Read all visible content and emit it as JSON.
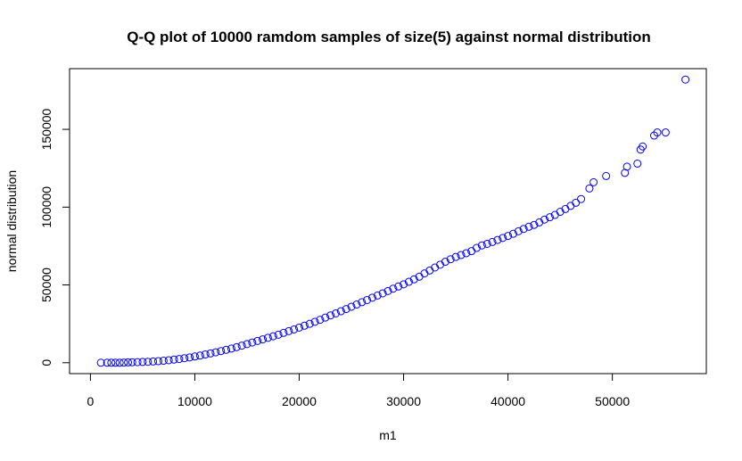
{
  "chart_data": {
    "type": "scatter",
    "title": "Q-Q plot of 10000 ramdom samples of size(5) against normal distribution",
    "xlabel": "m1",
    "ylabel": "normal distribution",
    "xlim": [
      -2000,
      59000
    ],
    "ylim": [
      -7000,
      189000
    ],
    "x_ticks": [
      0,
      10000,
      20000,
      30000,
      40000,
      50000
    ],
    "x_tick_labels": [
      "0",
      "10000",
      "20000",
      "30000",
      "40000",
      "50000"
    ],
    "y_ticks": [
      0,
      50000,
      100000,
      150000
    ],
    "y_tick_labels": [
      "0",
      "50000",
      "100000",
      "150000"
    ],
    "grid": false,
    "legend": "none",
    "marker": "open-circle",
    "point_color": "#0000ff",
    "series": [
      {
        "x": [
          1000,
          1600,
          2000,
          2400,
          2800,
          3200,
          3600,
          4000,
          4500,
          5000,
          5500,
          6000,
          6500,
          7000,
          7500,
          8000,
          8500,
          9000,
          9500,
          10000,
          10500,
          11000,
          11500,
          12000,
          12500,
          13000,
          13500,
          14000,
          14500,
          15000,
          15500,
          16000,
          16500,
          17000,
          17500,
          18000,
          18500,
          19000,
          19500,
          20000,
          20500,
          21000,
          21500,
          22000,
          22500,
          23000,
          23500,
          24000,
          24500,
          25000,
          25500,
          26000,
          26500,
          27000,
          27500,
          28000,
          28500,
          29000,
          29500,
          30000,
          30500,
          31000,
          31500,
          32000,
          32500,
          33000,
          33500,
          34000,
          34500,
          35000,
          35500,
          36000,
          36500,
          37000,
          37500,
          38000,
          38500,
          39000,
          39500,
          40000,
          40500,
          41000,
          41500,
          42000,
          42500,
          43000,
          43500,
          44000,
          44500,
          45000,
          45500,
          46000,
          46500,
          47000,
          47800,
          48200,
          49400,
          51200,
          51400,
          52400,
          52700,
          52900,
          54000,
          54300,
          55100,
          57000
        ],
        "y": [
          0,
          0,
          0,
          0,
          0,
          100,
          200,
          300,
          400,
          500,
          600,
          800,
          1000,
          1300,
          1600,
          2000,
          2400,
          2900,
          3400,
          4000,
          4600,
          5300,
          6000,
          6700,
          7500,
          8300,
          9100,
          10000,
          11000,
          12000,
          13000,
          14000,
          15000,
          16000,
          17000,
          18000,
          19200,
          20300,
          21400,
          22600,
          23800,
          25000,
          26300,
          27600,
          29000,
          30400,
          31700,
          33100,
          34500,
          36000,
          37400,
          38900,
          40300,
          41800,
          43200,
          44600,
          46100,
          47600,
          49000,
          50400,
          52000,
          53600,
          55300,
          57400,
          59300,
          61200,
          63000,
          64900,
          66500,
          68000,
          69200,
          70400,
          71700,
          73800,
          75400,
          76400,
          77600,
          78900,
          80200,
          81500,
          82900,
          84500,
          86000,
          87400,
          88600,
          90200,
          92000,
          93500,
          95000,
          97000,
          98800,
          100800,
          102800,
          105200,
          112000,
          116000,
          120000,
          122000,
          126000,
          128000,
          137000,
          139000,
          146000,
          148000,
          148000,
          182000
        ]
      }
    ]
  }
}
